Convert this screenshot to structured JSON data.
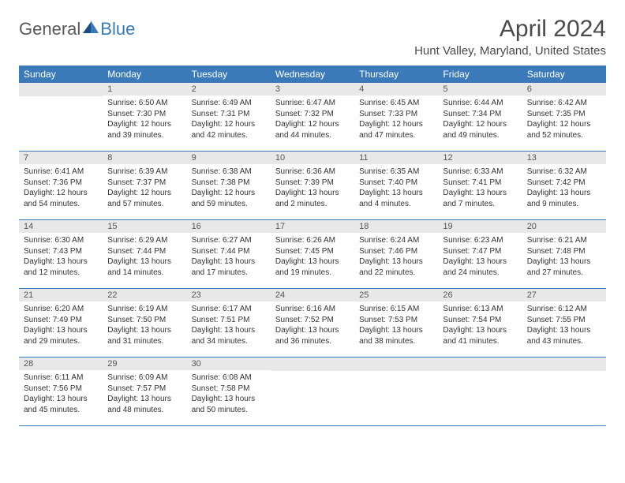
{
  "logo": {
    "general": "General",
    "blue": "Blue"
  },
  "title": "April 2024",
  "location": "Hunt Valley, Maryland, United States",
  "colors": {
    "header_bg": "#3a7ab8",
    "header_fg": "#ffffff",
    "daynum_bg": "#e8e8e8",
    "row_border": "#3a7ab8",
    "text": "#333333",
    "logo_gray": "#595959",
    "logo_blue": "#3a7ab8"
  },
  "weekdays": [
    "Sunday",
    "Monday",
    "Tuesday",
    "Wednesday",
    "Thursday",
    "Friday",
    "Saturday"
  ],
  "weeks": [
    [
      {
        "n": "",
        "sunrise": "",
        "sunset": "",
        "day1": "",
        "day2": ""
      },
      {
        "n": "1",
        "sunrise": "Sunrise: 6:50 AM",
        "sunset": "Sunset: 7:30 PM",
        "day1": "Daylight: 12 hours",
        "day2": "and 39 minutes."
      },
      {
        "n": "2",
        "sunrise": "Sunrise: 6:49 AM",
        "sunset": "Sunset: 7:31 PM",
        "day1": "Daylight: 12 hours",
        "day2": "and 42 minutes."
      },
      {
        "n": "3",
        "sunrise": "Sunrise: 6:47 AM",
        "sunset": "Sunset: 7:32 PM",
        "day1": "Daylight: 12 hours",
        "day2": "and 44 minutes."
      },
      {
        "n": "4",
        "sunrise": "Sunrise: 6:45 AM",
        "sunset": "Sunset: 7:33 PM",
        "day1": "Daylight: 12 hours",
        "day2": "and 47 minutes."
      },
      {
        "n": "5",
        "sunrise": "Sunrise: 6:44 AM",
        "sunset": "Sunset: 7:34 PM",
        "day1": "Daylight: 12 hours",
        "day2": "and 49 minutes."
      },
      {
        "n": "6",
        "sunrise": "Sunrise: 6:42 AM",
        "sunset": "Sunset: 7:35 PM",
        "day1": "Daylight: 12 hours",
        "day2": "and 52 minutes."
      }
    ],
    [
      {
        "n": "7",
        "sunrise": "Sunrise: 6:41 AM",
        "sunset": "Sunset: 7:36 PM",
        "day1": "Daylight: 12 hours",
        "day2": "and 54 minutes."
      },
      {
        "n": "8",
        "sunrise": "Sunrise: 6:39 AM",
        "sunset": "Sunset: 7:37 PM",
        "day1": "Daylight: 12 hours",
        "day2": "and 57 minutes."
      },
      {
        "n": "9",
        "sunrise": "Sunrise: 6:38 AM",
        "sunset": "Sunset: 7:38 PM",
        "day1": "Daylight: 12 hours",
        "day2": "and 59 minutes."
      },
      {
        "n": "10",
        "sunrise": "Sunrise: 6:36 AM",
        "sunset": "Sunset: 7:39 PM",
        "day1": "Daylight: 13 hours",
        "day2": "and 2 minutes."
      },
      {
        "n": "11",
        "sunrise": "Sunrise: 6:35 AM",
        "sunset": "Sunset: 7:40 PM",
        "day1": "Daylight: 13 hours",
        "day2": "and 4 minutes."
      },
      {
        "n": "12",
        "sunrise": "Sunrise: 6:33 AM",
        "sunset": "Sunset: 7:41 PM",
        "day1": "Daylight: 13 hours",
        "day2": "and 7 minutes."
      },
      {
        "n": "13",
        "sunrise": "Sunrise: 6:32 AM",
        "sunset": "Sunset: 7:42 PM",
        "day1": "Daylight: 13 hours",
        "day2": "and 9 minutes."
      }
    ],
    [
      {
        "n": "14",
        "sunrise": "Sunrise: 6:30 AM",
        "sunset": "Sunset: 7:43 PM",
        "day1": "Daylight: 13 hours",
        "day2": "and 12 minutes."
      },
      {
        "n": "15",
        "sunrise": "Sunrise: 6:29 AM",
        "sunset": "Sunset: 7:44 PM",
        "day1": "Daylight: 13 hours",
        "day2": "and 14 minutes."
      },
      {
        "n": "16",
        "sunrise": "Sunrise: 6:27 AM",
        "sunset": "Sunset: 7:44 PM",
        "day1": "Daylight: 13 hours",
        "day2": "and 17 minutes."
      },
      {
        "n": "17",
        "sunrise": "Sunrise: 6:26 AM",
        "sunset": "Sunset: 7:45 PM",
        "day1": "Daylight: 13 hours",
        "day2": "and 19 minutes."
      },
      {
        "n": "18",
        "sunrise": "Sunrise: 6:24 AM",
        "sunset": "Sunset: 7:46 PM",
        "day1": "Daylight: 13 hours",
        "day2": "and 22 minutes."
      },
      {
        "n": "19",
        "sunrise": "Sunrise: 6:23 AM",
        "sunset": "Sunset: 7:47 PM",
        "day1": "Daylight: 13 hours",
        "day2": "and 24 minutes."
      },
      {
        "n": "20",
        "sunrise": "Sunrise: 6:21 AM",
        "sunset": "Sunset: 7:48 PM",
        "day1": "Daylight: 13 hours",
        "day2": "and 27 minutes."
      }
    ],
    [
      {
        "n": "21",
        "sunrise": "Sunrise: 6:20 AM",
        "sunset": "Sunset: 7:49 PM",
        "day1": "Daylight: 13 hours",
        "day2": "and 29 minutes."
      },
      {
        "n": "22",
        "sunrise": "Sunrise: 6:19 AM",
        "sunset": "Sunset: 7:50 PM",
        "day1": "Daylight: 13 hours",
        "day2": "and 31 minutes."
      },
      {
        "n": "23",
        "sunrise": "Sunrise: 6:17 AM",
        "sunset": "Sunset: 7:51 PM",
        "day1": "Daylight: 13 hours",
        "day2": "and 34 minutes."
      },
      {
        "n": "24",
        "sunrise": "Sunrise: 6:16 AM",
        "sunset": "Sunset: 7:52 PM",
        "day1": "Daylight: 13 hours",
        "day2": "and 36 minutes."
      },
      {
        "n": "25",
        "sunrise": "Sunrise: 6:15 AM",
        "sunset": "Sunset: 7:53 PM",
        "day1": "Daylight: 13 hours",
        "day2": "and 38 minutes."
      },
      {
        "n": "26",
        "sunrise": "Sunrise: 6:13 AM",
        "sunset": "Sunset: 7:54 PM",
        "day1": "Daylight: 13 hours",
        "day2": "and 41 minutes."
      },
      {
        "n": "27",
        "sunrise": "Sunrise: 6:12 AM",
        "sunset": "Sunset: 7:55 PM",
        "day1": "Daylight: 13 hours",
        "day2": "and 43 minutes."
      }
    ],
    [
      {
        "n": "28",
        "sunrise": "Sunrise: 6:11 AM",
        "sunset": "Sunset: 7:56 PM",
        "day1": "Daylight: 13 hours",
        "day2": "and 45 minutes."
      },
      {
        "n": "29",
        "sunrise": "Sunrise: 6:09 AM",
        "sunset": "Sunset: 7:57 PM",
        "day1": "Daylight: 13 hours",
        "day2": "and 48 minutes."
      },
      {
        "n": "30",
        "sunrise": "Sunrise: 6:08 AM",
        "sunset": "Sunset: 7:58 PM",
        "day1": "Daylight: 13 hours",
        "day2": "and 50 minutes."
      },
      {
        "n": "",
        "sunrise": "",
        "sunset": "",
        "day1": "",
        "day2": ""
      },
      {
        "n": "",
        "sunrise": "",
        "sunset": "",
        "day1": "",
        "day2": ""
      },
      {
        "n": "",
        "sunrise": "",
        "sunset": "",
        "day1": "",
        "day2": ""
      },
      {
        "n": "",
        "sunrise": "",
        "sunset": "",
        "day1": "",
        "day2": ""
      }
    ]
  ]
}
